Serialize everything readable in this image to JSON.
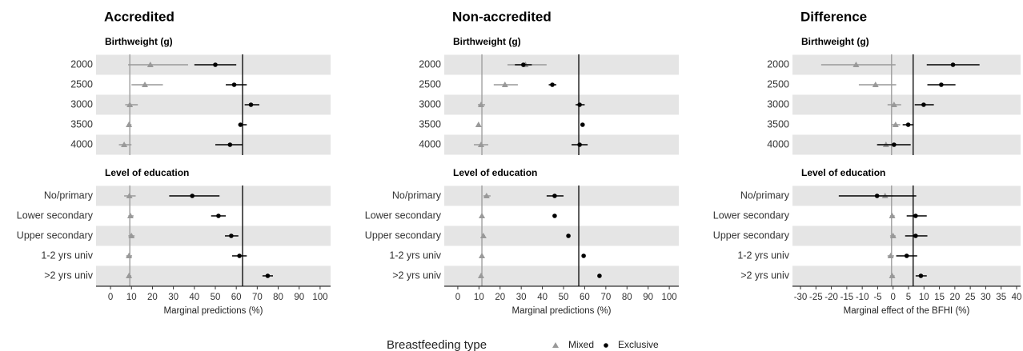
{
  "chart_data": [
    {
      "type": "forest",
      "title": "Accredited",
      "xlabel": "Marginal predictions (%)",
      "xlim": [
        -6.9,
        105
      ],
      "xticks": [
        0,
        10,
        20,
        30,
        40,
        50,
        60,
        70,
        80,
        90,
        100
      ],
      "reference_lines": [
        {
          "value": 9.2,
          "color": "#999999"
        },
        {
          "value": 63,
          "color": "#000000"
        }
      ],
      "facets": [
        {
          "title": "Birthweight (g)",
          "categories": [
            "2000",
            "2500",
            "3000",
            "3500",
            "4000"
          ],
          "series": [
            {
              "values": [
                19,
                16.4,
                9.2,
                8.8,
                6.5
              ],
              "lower": [
                8.4,
                10,
                7,
                8,
                4
              ],
              "upper": [
                37,
                25,
                13,
                10,
                10
              ]
            },
            {
              "values": [
                50,
                59,
                67,
                62,
                57
              ],
              "lower": [
                40,
                55,
                64,
                61,
                50
              ],
              "upper": [
                60,
                65,
                71,
                65,
                63
              ]
            }
          ]
        },
        {
          "title": "Level of education",
          "categories": [
            "No/primary",
            "Lower secondary",
            "Upper secondary",
            "1-2 yrs univ",
            ">2 yrs univ"
          ],
          "series": [
            {
              "values": [
                9,
                9.5,
                10,
                8.8,
                8.8
              ],
              "lower": [
                6.5,
                8.5,
                8.5,
                7.5,
                8
              ],
              "upper": [
                12,
                11,
                11.5,
                10.3,
                9.9
              ]
            },
            {
              "values": [
                39,
                51.5,
                57.6,
                61.5,
                75
              ],
              "lower": [
                28,
                48,
                54.6,
                58,
                72.5
              ],
              "upper": [
                52,
                55,
                61,
                65,
                77.5
              ]
            }
          ]
        }
      ]
    },
    {
      "type": "forest",
      "title": "Non-accredited",
      "xlabel": "Marginal predictions (%)",
      "xlim": [
        -6.4,
        104.5
      ],
      "xticks": [
        0,
        10,
        20,
        30,
        40,
        50,
        60,
        70,
        80,
        90,
        100
      ],
      "reference_lines": [
        {
          "value": 11.4,
          "color": "#999999"
        },
        {
          "value": 57.2,
          "color": "#000000"
        }
      ],
      "facets": [
        {
          "title": "Birthweight (g)",
          "categories": [
            "2000",
            "2500",
            "3000",
            "3500",
            "4000"
          ],
          "series": [
            {
              "values": [
                32,
                22.3,
                11,
                9.8,
                11
              ],
              "lower": [
                23.5,
                17,
                9.5,
                9.5,
                7.6
              ],
              "upper": [
                42,
                28.4,
                12.9,
                10.6,
                14.4
              ]
            },
            {
              "values": [
                31,
                44.7,
                57.6,
                59,
                57.6
              ],
              "lower": [
                27,
                43,
                55.7,
                58.3,
                53.8
              ],
              "upper": [
                35,
                46.6,
                60,
                59.8,
                61.4
              ]
            }
          ]
        },
        {
          "title": "Level of education",
          "categories": [
            "No/primary",
            "Lower secondary",
            "Upper secondary",
            "1-2 yrs univ",
            ">2 yrs univ"
          ],
          "series": [
            {
              "values": [
                13.6,
                11.4,
                12.1,
                11.4,
                11
              ],
              "lower": [
                12.1,
                11,
                11.4,
                10.6,
                10.2
              ],
              "upper": [
                15.5,
                12.1,
                12.9,
                12.1,
                11.7
              ]
            },
            {
              "values": [
                45.8,
                45.8,
                52.3,
                59.5,
                67
              ],
              "lower": [
                42,
                45,
                51.5,
                58.7,
                66.3
              ],
              "upper": [
                50,
                46.6,
                53,
                60.2,
                67.8
              ]
            }
          ]
        }
      ]
    },
    {
      "type": "forest",
      "title": "Difference",
      "xlabel": "Marginal effect of the BFHI (%)",
      "xlim": [
        -32.6,
        41.3
      ],
      "xticks": [
        -30,
        -25,
        -20,
        -15,
        -10,
        -5,
        0,
        5,
        10,
        15,
        20,
        25,
        30,
        35,
        40
      ],
      "reference_lines": [
        {
          "value": -0.5,
          "color": "#999999"
        },
        {
          "value": 6.5,
          "color": "#000000"
        }
      ],
      "facets": [
        {
          "title": "Birthweight (g)",
          "categories": [
            "2000",
            "2500",
            "3000",
            "3500",
            "4000"
          ],
          "series": [
            {
              "values": [
                -12,
                -5.7,
                0.3,
                0.8,
                -2.3
              ],
              "lower": [
                -23.3,
                -11.1,
                -1.8,
                -0.5,
                -4.9
              ],
              "upper": [
                0.8,
                1,
                2.6,
                2.3,
                0.3
              ]
            },
            {
              "values": [
                19.4,
                15.6,
                9.9,
                4.9,
                0.3
              ],
              "lower": [
                10.9,
                11.1,
                7,
                3.1,
                -5.2
              ],
              "upper": [
                28,
                20.2,
                13.2,
                6.7,
                5.7
              ]
            }
          ]
        },
        {
          "title": "Level of education",
          "categories": [
            "No/primary",
            "Lower secondary",
            "Upper secondary",
            "1-2 yrs univ",
            ">2 yrs univ"
          ],
          "series": [
            {
              "values": [
                -2.6,
                -0.3,
                0,
                -0.8,
                -0.3
              ],
              "lower": [
                -5.2,
                -1,
                -1,
                -1.8,
                -1
              ],
              "upper": [
                0,
                0.5,
                0.8,
                0.3,
                0.5
              ]
            },
            {
              "values": [
                -5.2,
                7.3,
                7.3,
                4.4,
                9
              ],
              "lower": [
                -17.6,
                4.4,
                3.9,
                1,
                7.3
              ],
              "upper": [
                7.5,
                10.9,
                11.1,
                7.8,
                10.9
              ]
            }
          ]
        }
      ]
    }
  ],
  "legend": {
    "title": "Breastfeeding type",
    "series": [
      {
        "name": "Mixed",
        "color": "#999999",
        "marker": "triangle"
      },
      {
        "name": "Exclusive",
        "color": "#000000",
        "marker": "circle"
      }
    ]
  }
}
